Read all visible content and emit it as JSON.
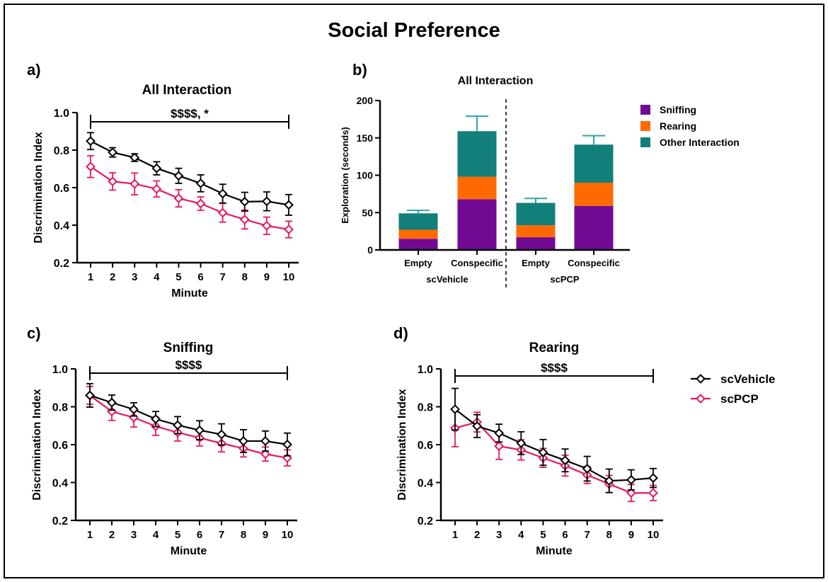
{
  "title": "Social Preference",
  "colors": {
    "scVehicle": "#000000",
    "scPCP": "#e8185f",
    "Sniffing": "#730a93",
    "Rearing": "#ff6a00",
    "Other Interaction": "#137f7b"
  },
  "legend": [
    "scVehicle",
    "scPCP"
  ],
  "chart_data": [
    {
      "panel": "a)",
      "type": "line",
      "title": "All Interaction",
      "xlabel": "Minute",
      "ylabel": "Discrimination Index",
      "ylim": [
        0.2,
        1.0
      ],
      "yticks": [
        "0.2",
        "0.4",
        "0.6",
        "0.8",
        "1.0"
      ],
      "x": [
        1,
        2,
        3,
        4,
        5,
        6,
        7,
        8,
        9,
        10
      ],
      "annotation": "$$$$, *",
      "series": [
        {
          "name": "scVehicle",
          "values": [
            0.848,
            0.788,
            0.76,
            0.703,
            0.663,
            0.623,
            0.568,
            0.525,
            0.527,
            0.508
          ],
          "error": [
            0.045,
            0.025,
            0.02,
            0.035,
            0.04,
            0.045,
            0.05,
            0.05,
            0.05,
            0.055
          ]
        },
        {
          "name": "scPCP",
          "values": [
            0.712,
            0.633,
            0.62,
            0.593,
            0.543,
            0.515,
            0.466,
            0.43,
            0.397,
            0.377
          ],
          "error": [
            0.058,
            0.046,
            0.058,
            0.043,
            0.046,
            0.036,
            0.05,
            0.05,
            0.046,
            0.044
          ]
        }
      ]
    },
    {
      "panel": "b)",
      "type": "bar",
      "stacked": true,
      "title": "All Interaction",
      "ylabel": "Exploration (seconds)",
      "ylim": [
        0,
        200
      ],
      "yticks": [
        "0",
        "50",
        "100",
        "150",
        "200"
      ],
      "categories": [
        "Empty",
        "Conspecific",
        "Empty",
        "Conspecific"
      ],
      "groups": [
        "scVehicle",
        "scPCP"
      ],
      "series": [
        {
          "name": "Sniffing",
          "values": [
            15,
            68,
            17,
            59
          ],
          "error": [
            2,
            8,
            3,
            5
          ]
        },
        {
          "name": "Rearing",
          "values": [
            12,
            30,
            16,
            31
          ],
          "error": [
            2,
            4,
            1,
            3
          ]
        },
        {
          "name": "Other Interaction",
          "values": [
            22,
            61,
            30,
            51
          ],
          "error": [
            4,
            20,
            6,
            12
          ]
        }
      ],
      "legend_position": "right"
    },
    {
      "panel": "c)",
      "type": "line",
      "title": "Sniffing",
      "xlabel": "Minute",
      "ylabel": "Discrimination Index",
      "ylim": [
        0.2,
        1.0
      ],
      "yticks": [
        "0.2",
        "0.4",
        "0.6",
        "0.8",
        "1.0"
      ],
      "x": [
        1,
        2,
        3,
        4,
        5,
        6,
        7,
        8,
        9,
        10
      ],
      "annotation": "$$$$",
      "series": [
        {
          "name": "scVehicle",
          "values": [
            0.86,
            0.822,
            0.786,
            0.735,
            0.703,
            0.676,
            0.654,
            0.619,
            0.619,
            0.601
          ],
          "error": [
            0.062,
            0.04,
            0.035,
            0.04,
            0.045,
            0.05,
            0.056,
            0.06,
            0.053,
            0.06
          ]
        },
        {
          "name": "scPCP",
          "values": [
            0.86,
            0.775,
            0.743,
            0.697,
            0.664,
            0.636,
            0.607,
            0.58,
            0.55,
            0.53
          ],
          "error": [
            0.047,
            0.047,
            0.05,
            0.048,
            0.045,
            0.043,
            0.045,
            0.045,
            0.037,
            0.042
          ]
        }
      ]
    },
    {
      "panel": "d)",
      "type": "line",
      "title": "Rearing",
      "xlabel": "Minute",
      "ylabel": "Discrimination Index",
      "ylim": [
        0.2,
        1.0
      ],
      "yticks": [
        "0.2",
        "0.4",
        "0.6",
        "0.8",
        "1.0"
      ],
      "x": [
        1,
        2,
        3,
        4,
        5,
        6,
        7,
        8,
        9,
        10
      ],
      "annotation": "$$$$",
      "series": [
        {
          "name": "scVehicle",
          "values": [
            0.787,
            0.698,
            0.661,
            0.608,
            0.559,
            0.517,
            0.473,
            0.409,
            0.414,
            0.424
          ],
          "error": [
            0.11,
            0.06,
            0.047,
            0.06,
            0.068,
            0.06,
            0.065,
            0.062,
            0.053,
            0.05
          ]
        },
        {
          "name": "scPCP",
          "values": [
            0.687,
            0.719,
            0.592,
            0.572,
            0.53,
            0.489,
            0.44,
            0.392,
            0.345,
            0.345
          ],
          "error": [
            0.098,
            0.052,
            0.07,
            0.053,
            0.05,
            0.055,
            0.045,
            0.045,
            0.045,
            0.04
          ]
        }
      ]
    }
  ]
}
